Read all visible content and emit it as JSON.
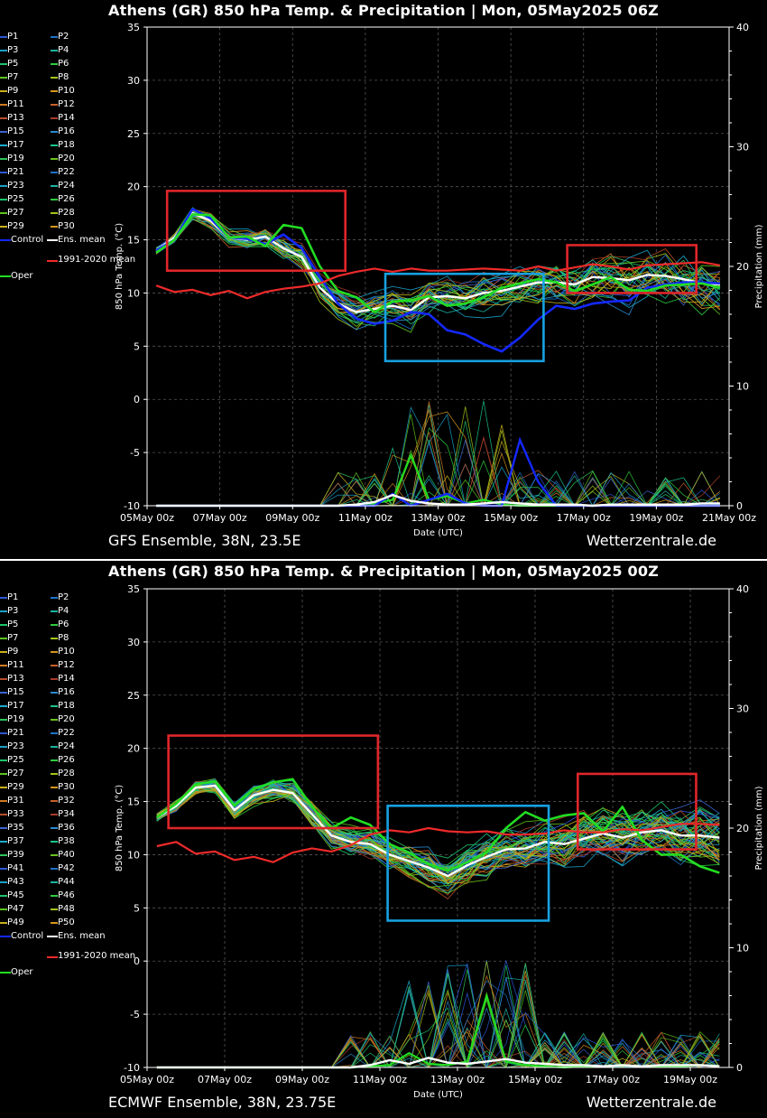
{
  "panels": [
    {
      "id": "gfs",
      "title": "Athens  (GR)  850 hPa Temp. & Precipitation | Mon, 05May2025 06Z",
      "model_label": "GFS Ensemble, 38N, 23.5E",
      "credit": "Wetterzentrale.de",
      "xlabel": "Date (UTC)",
      "ylabel": "850 hPa Temp. (°C)",
      "y2label": "Precipitation (mm)",
      "legend_members": [
        "P1",
        "P2",
        "P3",
        "P4",
        "P5",
        "P6",
        "P7",
        "P8",
        "P9",
        "P10",
        "P11",
        "P12",
        "P13",
        "P14",
        "P15",
        "P16",
        "P17",
        "P18",
        "P19",
        "P20",
        "P21",
        "P22",
        "P23",
        "P24",
        "P25",
        "P26",
        "P27",
        "P28",
        "P29",
        "P30"
      ],
      "legend_special": [
        "Control",
        "Ens. mean",
        "Oper"
      ],
      "legend_clim": "1991-2020 mean"
    },
    {
      "id": "ecmwf",
      "title": "Athens  (GR)  850 hPa Temp. & Precipitation | Mon, 05May2025 00Z",
      "model_label": "ECMWF Ensemble, 38N, 23.75E",
      "credit": "Wetterzentrale.de",
      "xlabel": "Date (UTC)",
      "ylabel": "850 hPa Temp. (°C)",
      "y2label": "Precipitation (mm)",
      "legend_members": [
        "P1",
        "P2",
        "P3",
        "P4",
        "P5",
        "P6",
        "P7",
        "P8",
        "P9",
        "P10",
        "P11",
        "P12",
        "P13",
        "P14",
        "P15",
        "P16",
        "P17",
        "P18",
        "P19",
        "P20",
        "P21",
        "P22",
        "P23",
        "P24",
        "P25",
        "P26",
        "P27",
        "P28",
        "P29",
        "P30",
        "P31",
        "P32",
        "P33",
        "P34",
        "P35",
        "P36",
        "P37",
        "P38",
        "P39",
        "P40",
        "P41",
        "P42",
        "P43",
        "P44",
        "P45",
        "P46",
        "P47",
        "P48",
        "P49",
        "P50"
      ],
      "legend_special": [
        "Control",
        "Ens. mean",
        "Oper"
      ],
      "legend_clim": "1991-2020 mean"
    }
  ],
  "colors": {
    "member_palette": [
      "#2b58d6",
      "#1e73c8",
      "#19a0c8",
      "#1bb3a0",
      "#1cc46a",
      "#2ecc40",
      "#5cc41c",
      "#a3c41a",
      "#c8b01a",
      "#d6951c",
      "#d07a20",
      "#c8602a",
      "#b84c2a",
      "#a83c2a",
      "#3a64d0",
      "#2a8ad0",
      "#1aaed0",
      "#1ac48c",
      "#2ec45a",
      "#6ac41e"
    ],
    "control": "#1428ff",
    "mean": "#ffffff",
    "oper": "#22dd22",
    "climate": "#ee2a2a",
    "box_red": "#e0262a",
    "box_blue": "#17a1e0",
    "grid": "#555555"
  },
  "chart_data": [
    {
      "type": "line",
      "title": "Athens  (GR)  850 hPa Temp. & Precipitation | Mon, 05May2025 06Z",
      "xlabel": "Date (UTC)",
      "ylabel": "850 hPa Temp. (°C)",
      "y2label": "Precipitation (mm)",
      "x_ticks": [
        "05May 00z",
        "07May 00z",
        "09May 00z",
        "11May 00z",
        "13May 00z",
        "15May 00z",
        "17May 00z",
        "19May 00z",
        "21May 00z"
      ],
      "x_range_days": [
        0,
        16
      ],
      "ylim": [
        -10,
        35
      ],
      "y_ticks": [
        -10,
        -5,
        0,
        5,
        10,
        15,
        20,
        25,
        30,
        35
      ],
      "y2lim": [
        0,
        40
      ],
      "y2_ticks": [
        0,
        10,
        20,
        30,
        40
      ],
      "grid": true,
      "x_days": [
        0.25,
        0.75,
        1.25,
        1.75,
        2.25,
        2.75,
        3.25,
        3.75,
        4.25,
        4.75,
        5.25,
        5.75,
        6.25,
        6.75,
        7.25,
        7.75,
        8.25,
        8.75,
        9.25,
        9.75,
        10.25,
        10.75,
        11.25,
        11.75,
        12.25,
        12.75,
        13.25,
        13.75,
        14.25,
        14.75,
        15.25,
        15.75
      ],
      "series": [
        {
          "name": "Ens. mean",
          "values": [
            14.0,
            15.2,
            17.5,
            16.8,
            15.2,
            15.0,
            15.3,
            14.2,
            13.4,
            10.5,
            9.0,
            8.2,
            8.5,
            8.8,
            8.4,
            9.6,
            9.7,
            9.5,
            10.0,
            10.2,
            10.6,
            11.0,
            11.0,
            10.8,
            11.5,
            11.4,
            11.2,
            11.7,
            11.6,
            11.3,
            10.9,
            10.8
          ]
        },
        {
          "name": "Control",
          "values": [
            14.0,
            15.0,
            17.9,
            17.0,
            15.2,
            15.1,
            14.6,
            15.5,
            14.2,
            11.5,
            9.0,
            7.6,
            7.1,
            7.4,
            8.2,
            8.0,
            6.5,
            6.1,
            5.2,
            4.5,
            5.8,
            7.5,
            8.8,
            8.5,
            9.0,
            9.2,
            9.3,
            10.5,
            10.8,
            11.0,
            11.0,
            10.9
          ]
        },
        {
          "name": "Oper",
          "values": [
            13.8,
            15.0,
            17.4,
            17.3,
            15.2,
            15.3,
            14.4,
            16.4,
            16.1,
            12.5,
            10.2,
            9.6,
            8.2,
            9.2,
            9.3,
            9.7,
            8.8,
            9.0,
            9.6,
            10.5,
            10.9,
            11.3,
            11.0,
            10.2,
            10.8,
            11.5,
            10.3,
            10.2,
            10.7,
            10.8,
            10.9,
            10.5
          ]
        },
        {
          "name": "1991-2020 mean",
          "values": [
            10.7,
            10.1,
            10.3,
            9.8,
            10.2,
            9.5,
            10.1,
            10.4,
            10.6,
            10.9,
            11.6,
            12.0,
            12.3,
            12.0,
            12.3,
            12.1,
            12.1,
            12.2,
            12.3,
            12.2,
            12.1,
            12.5,
            12.1,
            12.4,
            12.7,
            12.5,
            12.2,
            12.6,
            12.7,
            12.8,
            12.9,
            12.6
          ]
        }
      ],
      "precip_mean": [
        0,
        0,
        0,
        0,
        0,
        0,
        0,
        0,
        0,
        0,
        0,
        0.1,
        0.3,
        0.9,
        0.4,
        0.2,
        0.1,
        0.1,
        0.2,
        0.3,
        0.2,
        0.1,
        0.1,
        0.1,
        0,
        0.1,
        0.1,
        0.1,
        0.1,
        0.1,
        0.2,
        0.2
      ],
      "precip_control": [
        0,
        0,
        0,
        0,
        0,
        0,
        0,
        0,
        0,
        0,
        0,
        0,
        0,
        1.0,
        0,
        0.5,
        1.0,
        0.2,
        0,
        0,
        5.5,
        2.0,
        0,
        0,
        0,
        0,
        0,
        0,
        0,
        0,
        0,
        0
      ],
      "precip_oper": [
        0,
        0,
        0,
        0,
        0,
        0,
        0,
        0,
        0,
        0,
        0,
        0,
        0.2,
        0.5,
        4.2,
        0.5,
        0.8,
        0.2,
        0.5,
        0.1,
        0,
        0,
        0,
        0,
        0,
        0.1,
        0,
        0,
        0,
        0,
        0,
        0
      ]
    },
    {
      "type": "line",
      "title": "Athens  (GR)  850 hPa Temp. & Precipitation | Mon, 05May2025 00Z",
      "xlabel": "Date (UTC)",
      "ylabel": "850 hPa Temp. (°C)",
      "y2label": "Precipitation (mm)",
      "x_ticks": [
        "05May 00z",
        "07May 00z",
        "09May 00z",
        "11May 00z",
        "13May 00z",
        "15May 00z",
        "17May 00z",
        "19May 00z"
      ],
      "x_range_days": [
        0,
        15
      ],
      "ylim": [
        -10,
        35
      ],
      "y_ticks": [
        -10,
        -5,
        0,
        5,
        10,
        15,
        20,
        25,
        30,
        35
      ],
      "y2lim": [
        0,
        40
      ],
      "y2_ticks": [
        0,
        10,
        20,
        30,
        40
      ],
      "grid": true,
      "x_days": [
        0.25,
        0.75,
        1.25,
        1.75,
        2.25,
        2.75,
        3.25,
        3.75,
        4.25,
        4.75,
        5.25,
        5.75,
        6.25,
        6.75,
        7.25,
        7.75,
        8.25,
        8.75,
        9.25,
        9.75,
        10.25,
        10.75,
        11.25,
        11.75,
        12.25,
        12.75,
        13.25,
        13.75,
        14.25,
        14.75
      ],
      "series": [
        {
          "name": "Ens. mean",
          "values": [
            13.5,
            14.6,
            16.3,
            16.5,
            14.2,
            15.6,
            16.1,
            15.8,
            13.8,
            11.8,
            11.2,
            11.0,
            10.0,
            9.4,
            8.8,
            8.0,
            9.0,
            9.8,
            10.5,
            10.6,
            11.2,
            11.0,
            11.5,
            12.0,
            11.6,
            12.1,
            12.3,
            11.8,
            11.8,
            11.6
          ]
        },
        {
          "name": "Oper",
          "values": [
            13.5,
            14.8,
            16.6,
            16.9,
            14.6,
            16.2,
            16.8,
            17.1,
            14.5,
            12.5,
            13.5,
            12.8,
            11.0,
            10.2,
            9.1,
            8.5,
            9.3,
            10.2,
            12.5,
            14.0,
            13.2,
            13.7,
            13.9,
            12.2,
            14.5,
            11.4,
            10.0,
            10.0,
            8.9,
            8.3
          ]
        },
        {
          "name": "1991-2020 mean",
          "values": [
            10.8,
            11.2,
            10.1,
            10.3,
            9.5,
            9.8,
            9.3,
            10.2,
            10.6,
            10.3,
            10.9,
            11.9,
            12.3,
            12.1,
            12.5,
            12.2,
            12.1,
            12.2,
            11.9,
            11.9,
            12.0,
            12.3,
            12.1,
            12.1,
            12.4,
            12.3,
            12.6,
            12.9,
            12.9,
            12.8
          ]
        }
      ],
      "precip_mean": [
        0,
        0,
        0,
        0,
        0,
        0,
        0,
        0,
        0,
        0,
        0,
        0.2,
        0.6,
        0.3,
        0.8,
        0.4,
        0.3,
        0.5,
        0.7,
        0.4,
        0.3,
        0.2,
        0.2,
        0.1,
        0.2,
        0.1,
        0.2,
        0.2,
        0.2,
        0.1
      ],
      "precip_oper": [
        0,
        0,
        0,
        0,
        0,
        0,
        0,
        0,
        0,
        0,
        0,
        0.1,
        0.2,
        1.2,
        0.3,
        0.2,
        0.5,
        6.0,
        0.5,
        0.2,
        0.1,
        0,
        0.1,
        0.1,
        0.2,
        0.1,
        0.1,
        0.1,
        0.2,
        0.1
      ]
    }
  ]
}
